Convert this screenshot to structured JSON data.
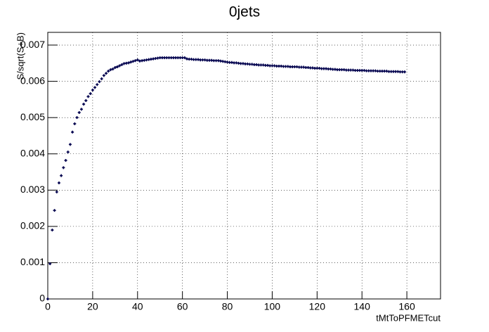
{
  "chart_data": {
    "type": "scatter",
    "title": "0jets",
    "x_label": "tMtToPFMETcut",
    "y_label": "S/sqrt(S+B)",
    "color": "#00004d",
    "grid": true,
    "xlim": [
      0,
      175
    ],
    "ylim": [
      0,
      0.00735
    ],
    "xticks": [
      0,
      20,
      40,
      60,
      80,
      100,
      120,
      140,
      160
    ],
    "yticks": [
      0,
      0.001,
      0.002,
      0.003,
      0.004,
      0.005,
      0.006,
      0.007
    ],
    "x": [
      0,
      1,
      2,
      3,
      4,
      5,
      6,
      7,
      8,
      9,
      10,
      11,
      12,
      13,
      14,
      15,
      16,
      17,
      18,
      19,
      20,
      21,
      22,
      23,
      24,
      25,
      26,
      27,
      28,
      29,
      30,
      31,
      32,
      33,
      34,
      35,
      36,
      37,
      38,
      39,
      40,
      41,
      42,
      43,
      44,
      45,
      46,
      47,
      48,
      49,
      50,
      51,
      52,
      53,
      54,
      55,
      56,
      57,
      58,
      59,
      60,
      61,
      62,
      63,
      64,
      65,
      66,
      67,
      68,
      69,
      70,
      71,
      72,
      73,
      74,
      75,
      76,
      77,
      78,
      79,
      80,
      81,
      82,
      83,
      84,
      85,
      86,
      87,
      88,
      89,
      90,
      91,
      92,
      93,
      94,
      95,
      96,
      97,
      98,
      99,
      100,
      101,
      102,
      103,
      104,
      105,
      106,
      107,
      108,
      109,
      110,
      111,
      112,
      113,
      114,
      115,
      116,
      117,
      118,
      119,
      120,
      121,
      122,
      123,
      124,
      125,
      126,
      127,
      128,
      129,
      130,
      131,
      132,
      133,
      134,
      135,
      136,
      137,
      138,
      139,
      140,
      141,
      142,
      143,
      144,
      145,
      146,
      147,
      148,
      149,
      150,
      151,
      152,
      153,
      154,
      155,
      156,
      157,
      158,
      159
    ],
    "values": [
      0,
      0.00097,
      0.0019,
      0.00244,
      0.00295,
      0.0032,
      0.0034,
      0.00362,
      0.00382,
      0.00405,
      0.00426,
      0.0046,
      0.00483,
      0.005,
      0.00514,
      0.00523,
      0.00537,
      0.00547,
      0.00558,
      0.00566,
      0.00576,
      0.00583,
      0.00591,
      0.00599,
      0.00607,
      0.00616,
      0.00622,
      0.00628,
      0.00632,
      0.00634,
      0.00638,
      0.0064,
      0.00643,
      0.00646,
      0.00649,
      0.0065,
      0.00651,
      0.00653,
      0.00655,
      0.00657,
      0.00659,
      0.00656,
      0.00657,
      0.00658,
      0.00659,
      0.0066,
      0.00661,
      0.00662,
      0.00663,
      0.00664,
      0.00665,
      0.00665,
      0.00665,
      0.00665,
      0.00665,
      0.00665,
      0.00665,
      0.00665,
      0.00665,
      0.00665,
      0.00665,
      0.00665,
      0.00662,
      0.00661,
      0.00661,
      0.0066,
      0.0066,
      0.0066,
      0.00659,
      0.00659,
      0.00659,
      0.00658,
      0.00658,
      0.00658,
      0.00657,
      0.00657,
      0.00657,
      0.00656,
      0.00655,
      0.00654,
      0.00653,
      0.00652,
      0.00652,
      0.00651,
      0.00651,
      0.0065,
      0.00649,
      0.00649,
      0.00648,
      0.00648,
      0.00647,
      0.00647,
      0.00646,
      0.00646,
      0.00645,
      0.00645,
      0.00645,
      0.00644,
      0.00644,
      0.00643,
      0.00643,
      0.00643,
      0.00642,
      0.00642,
      0.00642,
      0.00641,
      0.00641,
      0.00641,
      0.0064,
      0.0064,
      0.0064,
      0.0064,
      0.00639,
      0.00639,
      0.00639,
      0.00638,
      0.00638,
      0.00637,
      0.00637,
      0.00636,
      0.00636,
      0.00636,
      0.00635,
      0.00635,
      0.00635,
      0.00634,
      0.00634,
      0.00633,
      0.00633,
      0.00632,
      0.00632,
      0.00632,
      0.00632,
      0.00631,
      0.00631,
      0.00631,
      0.00631,
      0.0063,
      0.0063,
      0.0063,
      0.0063,
      0.0063,
      0.00629,
      0.00629,
      0.00629,
      0.00629,
      0.00629,
      0.00628,
      0.00628,
      0.00628,
      0.00628,
      0.00628,
      0.00627,
      0.00627,
      0.00627,
      0.00627,
      0.00627,
      0.00626,
      0.00626,
      0.00626
    ]
  }
}
